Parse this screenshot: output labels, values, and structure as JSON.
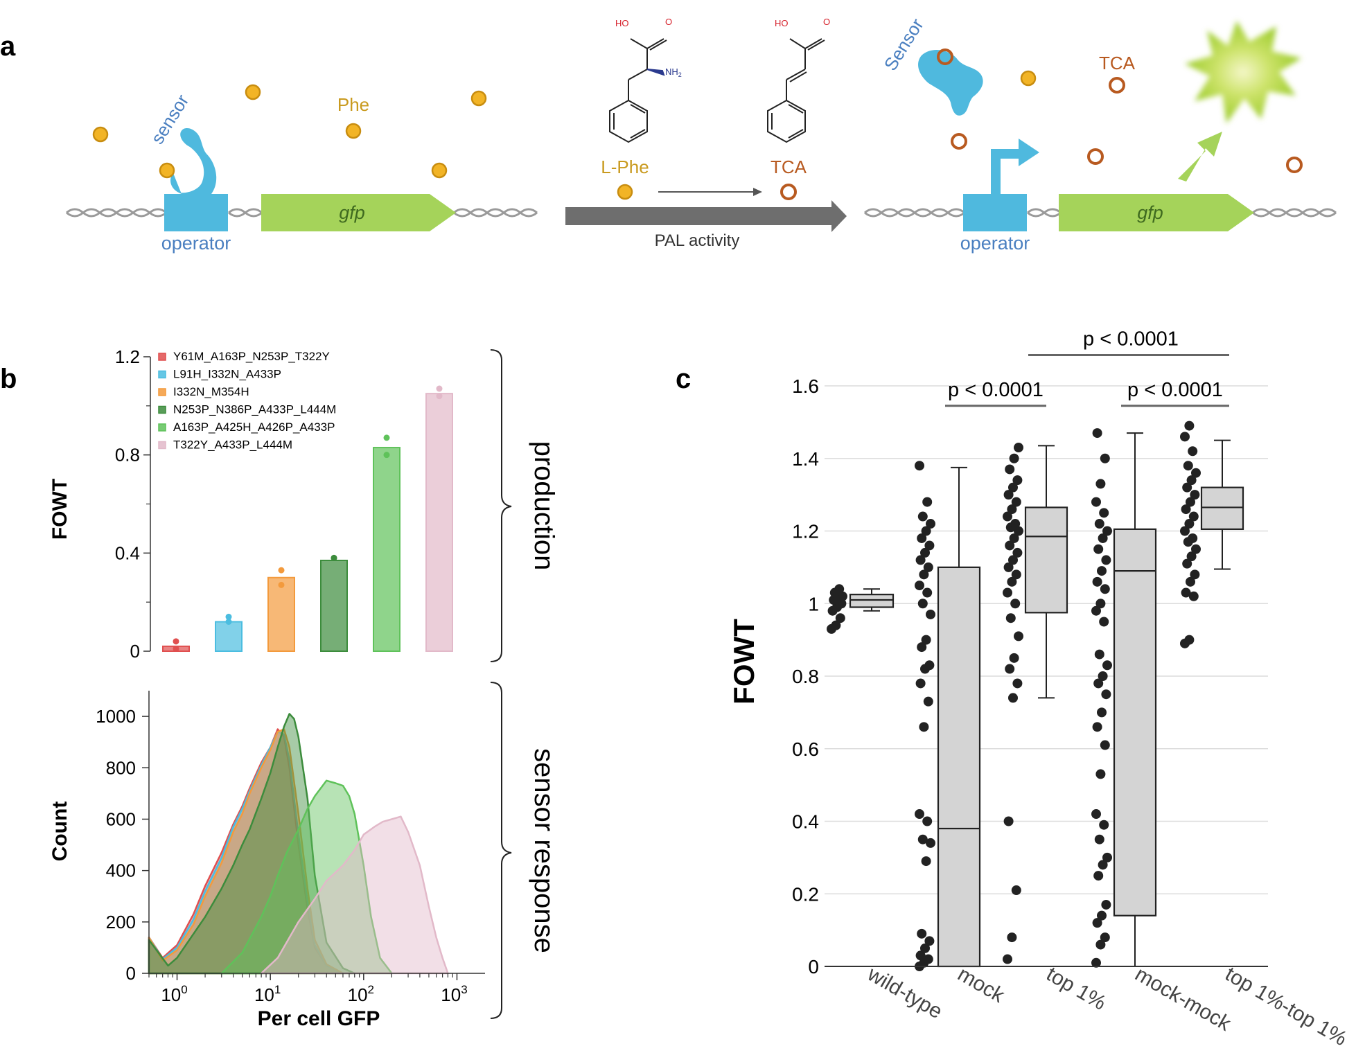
{
  "panel_letters": {
    "a": "a",
    "b": "b",
    "c": "c"
  },
  "panel_a": {
    "left": {
      "sensor": "sensor",
      "phe": "Phe",
      "gfp": "gfp",
      "operator": "operator"
    },
    "middle": {
      "l_phe": "L-Phe",
      "tca": "TCA",
      "pal": "PAL activity",
      "oh1": "HO",
      "nh2": "NH",
      "nh2_sub": "2",
      "oh2": "HO",
      "o1": "O",
      "o2": "O"
    },
    "right": {
      "sensor": "Sensor",
      "tca": "TCA",
      "gfp": "gfp",
      "operator": "operator"
    },
    "colors": {
      "sensor": "#4fb9de",
      "phe": "#f2b426",
      "tca": "#b85a20",
      "gfp": "#a5d35a",
      "dna": "#9a9a9a",
      "arrow": "#6e6e6e",
      "label_blue": "#4a7fc0"
    }
  },
  "chart_data": [
    {
      "type": "bar",
      "ylabel": "FOWT",
      "ylim": [
        0,
        1.2
      ],
      "yticks": [
        "0",
        "0.4",
        "0.8",
        "1.2"
      ],
      "legend_position": "top-left",
      "bracket_label": "production",
      "series": [
        {
          "name": "Y61M_A163P_N253P_T322Y",
          "value": 0.02,
          "points": [
            0.04,
            0.01
          ],
          "color": "#e04f4f"
        },
        {
          "name": "L91H_I332N_A433P",
          "value": 0.12,
          "points": [
            0.14,
            0.12
          ],
          "color": "#4bbde0"
        },
        {
          "name": "I332N_M354H",
          "value": 0.3,
          "points": [
            0.33,
            0.27
          ],
          "color": "#f39a3c"
        },
        {
          "name": "N253P_N386P_A433P_L444M",
          "value": 0.37,
          "points": [
            0.38,
            0.38
          ],
          "color": "#3c8c3c"
        },
        {
          "name": "A163P_A425H_A426P_A433P",
          "value": 0.83,
          "points": [
            0.87,
            0.8
          ],
          "color": "#5fc25a"
        },
        {
          "name": "T322Y_A433P_L444M",
          "value": 1.05,
          "points": [
            1.07,
            1.04
          ],
          "color": "#e2b9c9"
        }
      ]
    },
    {
      "type": "area",
      "xlabel": "Per cell GFP",
      "ylabel": "Count",
      "xscale": "log",
      "xlim": [
        0.5,
        2000
      ],
      "ylim": [
        0,
        1100
      ],
      "xtick_base": "10",
      "xticks": [
        {
          "value": 1,
          "exp": "0"
        },
        {
          "value": 10,
          "exp": "1"
        },
        {
          "value": 100,
          "exp": "2"
        },
        {
          "value": 1000,
          "exp": "3"
        }
      ],
      "yticks": [
        "0",
        "200",
        "400",
        "600",
        "800",
        "1000"
      ],
      "bracket_label": "sensor response",
      "series": [
        {
          "name": "Y61M_A163P_N253P_T322Y",
          "color": "#e04f4f",
          "x": [
            0.5,
            0.7,
            1,
            1.5,
            2,
            3,
            4,
            5,
            6,
            8,
            10,
            12,
            14,
            16,
            20,
            25,
            30,
            40,
            60
          ],
          "y": [
            140,
            60,
            110,
            230,
            340,
            470,
            580,
            650,
            720,
            820,
            880,
            950,
            920,
            800,
            500,
            250,
            100,
            30,
            0
          ]
        },
        {
          "name": "L91H_I332N_A433P",
          "color": "#4bbde0",
          "x": [
            0.5,
            0.7,
            1,
            1.5,
            2,
            3,
            4,
            5,
            6,
            8,
            10,
            12,
            14,
            16,
            20,
            25,
            30,
            40,
            60
          ],
          "y": [
            140,
            55,
            100,
            210,
            320,
            450,
            570,
            640,
            710,
            810,
            880,
            940,
            930,
            830,
            540,
            280,
            110,
            30,
            0
          ]
        },
        {
          "name": "I332N_M354H",
          "color": "#f39a3c",
          "x": [
            0.5,
            0.7,
            1,
            1.5,
            2,
            3,
            4,
            5,
            6,
            8,
            10,
            12,
            14,
            16,
            20,
            25,
            30,
            40,
            60
          ],
          "y": [
            140,
            50,
            90,
            190,
            300,
            430,
            550,
            620,
            700,
            800,
            870,
            940,
            950,
            880,
            620,
            330,
            130,
            35,
            0
          ]
        },
        {
          "name": "N253P_N386P_A433P_L444M",
          "color": "#3c8c3c",
          "x": [
            0.5,
            0.8,
            1,
            2,
            3,
            4,
            5,
            6,
            8,
            10,
            12,
            14,
            16,
            18,
            20,
            25,
            30,
            40,
            60,
            80
          ],
          "y": [
            130,
            30,
            60,
            220,
            330,
            420,
            500,
            560,
            680,
            780,
            880,
            960,
            1010,
            990,
            920,
            680,
            380,
            120,
            20,
            0
          ]
        },
        {
          "name": "A163P_A425H_A426P_A433P",
          "color": "#5fc25a",
          "x": [
            3,
            5,
            8,
            10,
            12,
            15,
            20,
            25,
            30,
            40,
            50,
            60,
            70,
            80,
            100,
            120,
            150,
            200
          ],
          "y": [
            0,
            80,
            220,
            300,
            380,
            470,
            560,
            640,
            690,
            750,
            740,
            730,
            690,
            620,
            420,
            220,
            60,
            0
          ]
        },
        {
          "name": "T322Y_A433P_L444M",
          "color": "#e2b9c9",
          "x": [
            8,
            12,
            20,
            30,
            40,
            60,
            80,
            100,
            130,
            160,
            200,
            250,
            300,
            400,
            500,
            600,
            700,
            800
          ],
          "y": [
            0,
            60,
            200,
            290,
            360,
            420,
            480,
            540,
            570,
            590,
            600,
            610,
            550,
            420,
            260,
            140,
            60,
            0
          ]
        }
      ]
    },
    {
      "type": "box",
      "ylabel": "FOWT",
      "ylim": [
        0,
        1.6
      ],
      "yticks": [
        "0",
        "0.2",
        "0.4",
        "0.6",
        "0.8",
        "1",
        "1.2",
        "1.4",
        "1.6"
      ],
      "grid": true,
      "categories": [
        "wild-type",
        "mock",
        "top 1%",
        "mock-mock",
        "top 1%-top 1%"
      ],
      "boxes": [
        {
          "whisker_low": 0.98,
          "q1": 0.99,
          "median": 1.01,
          "q3": 1.025,
          "whisker_high": 1.04
        },
        {
          "whisker_low": 0,
          "q1": 0,
          "median": 0.38,
          "q3": 1.1,
          "whisker_high": 1.375
        },
        {
          "whisker_low": 0.74,
          "q1": 0.975,
          "median": 1.185,
          "q3": 1.265,
          "whisker_high": 1.435
        },
        {
          "whisker_low": 0,
          "q1": 0.14,
          "median": 1.09,
          "q3": 1.205,
          "whisker_high": 1.47
        },
        {
          "whisker_low": 1.095,
          "q1": 1.205,
          "median": 1.265,
          "q3": 1.32,
          "whisker_high": 1.45
        }
      ],
      "points": [
        [
          0.93,
          0.94,
          0.96,
          0.98,
          0.99,
          1.0,
          1.01,
          1.02,
          1.02,
          1.03,
          1.04
        ],
        [
          0.0,
          0.01,
          0.02,
          0.03,
          0.05,
          0.07,
          0.09,
          0.29,
          0.34,
          0.35,
          0.4,
          0.42,
          0.66,
          0.73,
          0.78,
          0.82,
          0.83,
          0.88,
          0.9,
          0.97,
          1.0,
          1.03,
          1.05,
          1.08,
          1.1,
          1.12,
          1.14,
          1.16,
          1.18,
          1.2,
          1.22,
          1.24,
          1.28,
          1.38
        ],
        [
          0.02,
          0.08,
          0.21,
          0.4,
          0.74,
          0.78,
          0.82,
          0.85,
          0.91,
          0.96,
          1.0,
          1.03,
          1.06,
          1.08,
          1.1,
          1.12,
          1.14,
          1.16,
          1.18,
          1.2,
          1.21,
          1.22,
          1.24,
          1.26,
          1.28,
          1.3,
          1.32,
          1.34,
          1.37,
          1.4,
          1.43
        ],
        [
          0.01,
          0.06,
          0.08,
          0.12,
          0.14,
          0.17,
          0.25,
          0.28,
          0.3,
          0.35,
          0.39,
          0.42,
          0.53,
          0.61,
          0.66,
          0.7,
          0.75,
          0.78,
          0.8,
          0.83,
          0.86,
          0.95,
          0.98,
          1.0,
          1.04,
          1.06,
          1.09,
          1.12,
          1.15,
          1.18,
          1.2,
          1.22,
          1.25,
          1.28,
          1.33,
          1.4,
          1.47
        ],
        [
          0.89,
          0.9,
          1.02,
          1.03,
          1.06,
          1.08,
          1.11,
          1.13,
          1.15,
          1.17,
          1.18,
          1.2,
          1.22,
          1.24,
          1.26,
          1.28,
          1.3,
          1.32,
          1.34,
          1.36,
          1.38,
          1.42,
          1.46,
          1.49
        ]
      ],
      "comparisons": [
        {
          "from": 1,
          "to": 2,
          "y": 1.545,
          "label": "p < 0.0001"
        },
        {
          "from": 3,
          "to": 4,
          "y": 1.545,
          "label": "p < 0.0001"
        },
        {
          "from": 2,
          "to": 4,
          "y": 1.685,
          "label": "p < 0.0001"
        }
      ]
    }
  ]
}
